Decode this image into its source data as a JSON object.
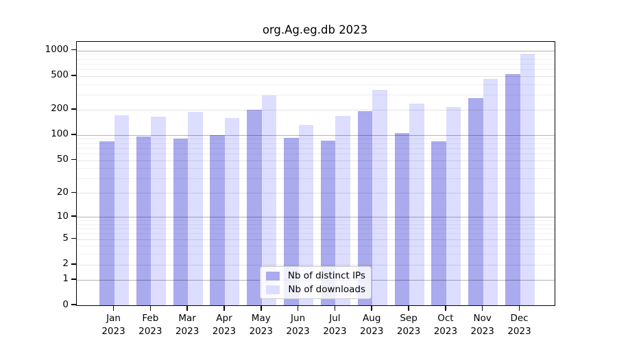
{
  "chart_data": {
    "type": "bar",
    "title": "org.Ag.eg.db 2023",
    "x": {
      "categories": [
        "Jan",
        "Feb",
        "Mar",
        "Apr",
        "May",
        "Jun",
        "Jul",
        "Aug",
        "Sep",
        "Oct",
        "Nov",
        "Dec"
      ],
      "year": "2023"
    },
    "y_axis": {
      "scale": "log1p",
      "range": [
        0,
        1000
      ],
      "ticks": [
        0,
        1,
        2,
        5,
        10,
        20,
        50,
        100,
        200,
        500,
        1000
      ],
      "minor_gridlines": [
        3,
        4,
        6,
        7,
        8,
        9,
        30,
        40,
        60,
        70,
        80,
        90,
        300,
        400,
        600,
        700,
        800,
        900
      ],
      "major_gridlines": [
        1,
        10,
        100,
        1000
      ]
    },
    "series": [
      {
        "name": "Nb of distinct IPs",
        "color": "#aaaaee",
        "values": [
          84,
          96,
          90,
          99,
          200,
          92,
          86,
          192,
          105,
          84,
          273,
          528
        ]
      },
      {
        "name": "Nb of downloads",
        "color": "#ddddff",
        "values": [
          171,
          164,
          190,
          158,
          294,
          133,
          168,
          344,
          237,
          216,
          458,
          900
        ]
      }
    ],
    "legend": {
      "position": "bottom-center"
    },
    "grid": "on",
    "background": "#ffffff"
  }
}
